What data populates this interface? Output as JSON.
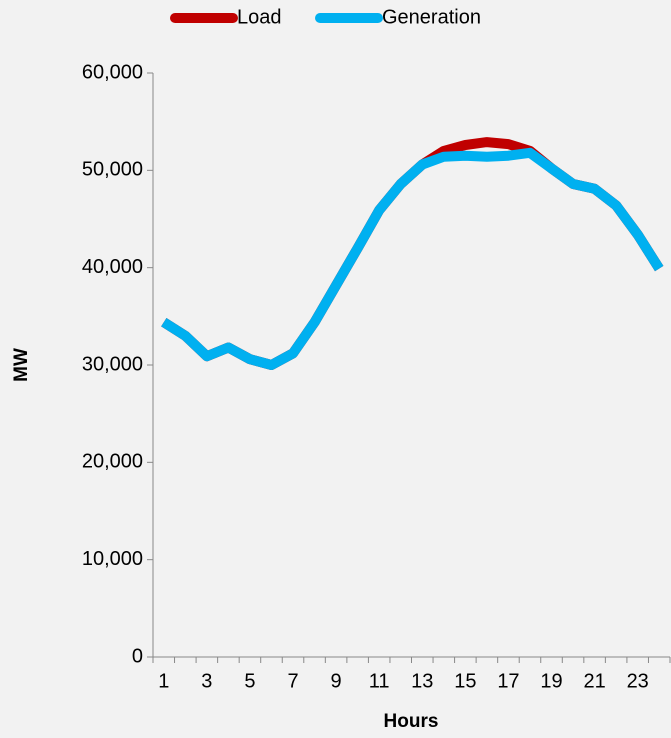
{
  "chart_data": {
    "type": "line",
    "xlabel": "Hours",
    "ylabel": "MW",
    "categories": [
      "1",
      null,
      "3",
      null,
      "5",
      null,
      "7",
      null,
      "9",
      null,
      "11",
      null,
      "13",
      null,
      "15",
      null,
      "17",
      null,
      "19",
      null,
      "21",
      null,
      "23",
      null
    ],
    "series": [
      {
        "name": "Load",
        "color": "#c00000",
        "values": [
          34400,
          33000,
          30900,
          31800,
          30600,
          30000,
          31200,
          34400,
          38200,
          42000,
          45900,
          48600,
          50600,
          52000,
          52600,
          52900,
          52700,
          52000,
          50200,
          48600,
          48100,
          46400,
          43400,
          39900
        ]
      },
      {
        "name": "Generation",
        "color": "#00b0f0",
        "values": [
          34400,
          33000,
          30900,
          31800,
          30600,
          30000,
          31200,
          34400,
          38200,
          42000,
          45900,
          48600,
          50600,
          51400,
          51500,
          51400,
          51500,
          51800,
          50200,
          48600,
          48100,
          46400,
          43400,
          39900
        ]
      }
    ],
    "ylim": [
      0,
      60000
    ],
    "yticks": [
      0,
      {
        "value": 10000,
        "label": "10,000"
      },
      {
        "value": 20000,
        "label": "20,000"
      },
      {
        "value": 30000,
        "label": "30,000"
      },
      {
        "value": 40000,
        "label": "40,000"
      },
      {
        "value": 50000,
        "label": "50,000"
      },
      {
        "value": 60000,
        "label": "60,000"
      }
    ],
    "legend": "top"
  }
}
